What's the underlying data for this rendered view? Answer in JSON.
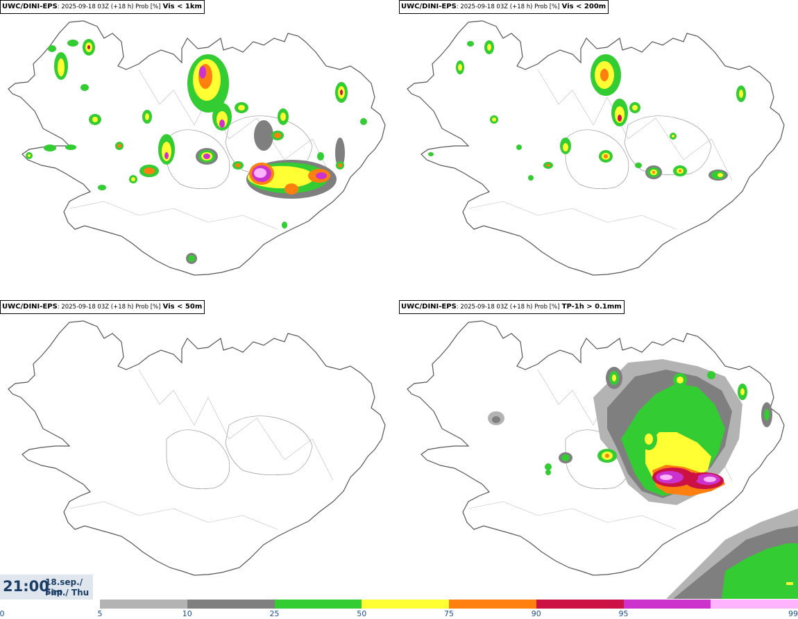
{
  "panels": [
    {
      "model": "UWC/DINI-EPS",
      "meta": ": 2025-09-18 03Z (+18 h) Prob [%]",
      "variable": "Vis < 1km"
    },
    {
      "model": "UWC/DINI-EPS",
      "meta": ": 2025-09-18 03Z (+18 h) Prob [%]",
      "variable": "Vis < 200m"
    },
    {
      "model": "UWC/DINI-EPS",
      "meta": ": 2025-09-18 03Z (+18 h) Prob [%]",
      "variable": "Vis < 50m"
    },
    {
      "model": "UWC/DINI-EPS",
      "meta": ": 2025-09-18 03Z (+18 h) Prob [%]",
      "variable": "TP-1h > 0.1mm"
    }
  ],
  "valid_time": {
    "time": "21:00",
    "date": "18.sep./ Sep",
    "day": "Fim./ Thu"
  },
  "colorbar": {
    "labels": [
      "0",
      "5",
      "10",
      "25",
      "50",
      "75",
      "90",
      "95",
      "99"
    ],
    "colors": [
      "#b3b3b3",
      "#7f7f7f",
      "#33cc33",
      "#ffff33",
      "#ff7f0f",
      "#cc1144",
      "#cc33cc",
      "#ffb3ff"
    ]
  },
  "map_colors": {
    "coast": "#555555",
    "p5": "#b3b3b3",
    "p10": "#7f7f7f",
    "p25": "#33cc33",
    "p50": "#ffff33",
    "p75": "#ff7f0f",
    "p90": "#cc1144",
    "p95": "#cc33cc",
    "p99": "#ffb3ff"
  }
}
